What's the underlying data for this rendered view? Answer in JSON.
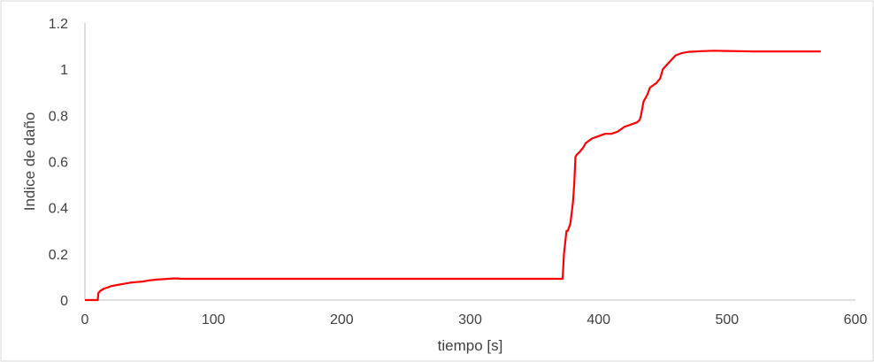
{
  "chart_data": {
    "type": "line",
    "title": "",
    "xlabel": "tiempo [s]",
    "ylabel": "Indice de daño",
    "xlim": [
      0,
      600
    ],
    "ylim": [
      0,
      1.2
    ],
    "x_ticks": [
      0,
      100,
      200,
      300,
      400,
      500,
      600
    ],
    "y_ticks": [
      0,
      0.2,
      0.4,
      0.6,
      0.8,
      1,
      1.2
    ],
    "x_tick_labels": [
      "0",
      "100",
      "200",
      "300",
      "400",
      "500",
      "600"
    ],
    "y_tick_labels": [
      "0",
      "0.2",
      "0.4",
      "0.6",
      "0.8",
      "1",
      "1.2"
    ],
    "grid": false,
    "legend": "none",
    "series": [
      {
        "color": "#ff0000",
        "x": [
          0,
          10,
          10.5,
          12,
          15,
          18,
          20,
          25,
          30,
          35,
          40,
          45,
          50,
          55,
          60,
          65,
          70,
          75,
          100,
          200,
          300,
          372,
          373,
          375,
          376,
          378,
          380,
          381,
          382,
          383,
          385,
          388,
          390,
          395,
          400,
          405,
          410,
          415,
          420,
          425,
          430,
          432,
          433,
          435,
          438,
          440,
          445,
          448,
          450,
          455,
          460,
          465,
          470,
          480,
          490,
          500,
          510,
          520,
          550,
          573
        ],
        "y": [
          0,
          0,
          0.03,
          0.04,
          0.05,
          0.055,
          0.06,
          0.065,
          0.07,
          0.075,
          0.078,
          0.08,
          0.085,
          0.088,
          0.09,
          0.092,
          0.094,
          0.092,
          0.092,
          0.092,
          0.092,
          0.092,
          0.2,
          0.3,
          0.3,
          0.33,
          0.42,
          0.5,
          0.62,
          0.63,
          0.64,
          0.66,
          0.68,
          0.7,
          0.71,
          0.72,
          0.72,
          0.73,
          0.75,
          0.76,
          0.77,
          0.78,
          0.8,
          0.86,
          0.89,
          0.92,
          0.94,
          0.96,
          1.0,
          1.03,
          1.06,
          1.07,
          1.075,
          1.078,
          1.08,
          1.079,
          1.078,
          1.077,
          1.077,
          1.077
        ]
      }
    ]
  }
}
